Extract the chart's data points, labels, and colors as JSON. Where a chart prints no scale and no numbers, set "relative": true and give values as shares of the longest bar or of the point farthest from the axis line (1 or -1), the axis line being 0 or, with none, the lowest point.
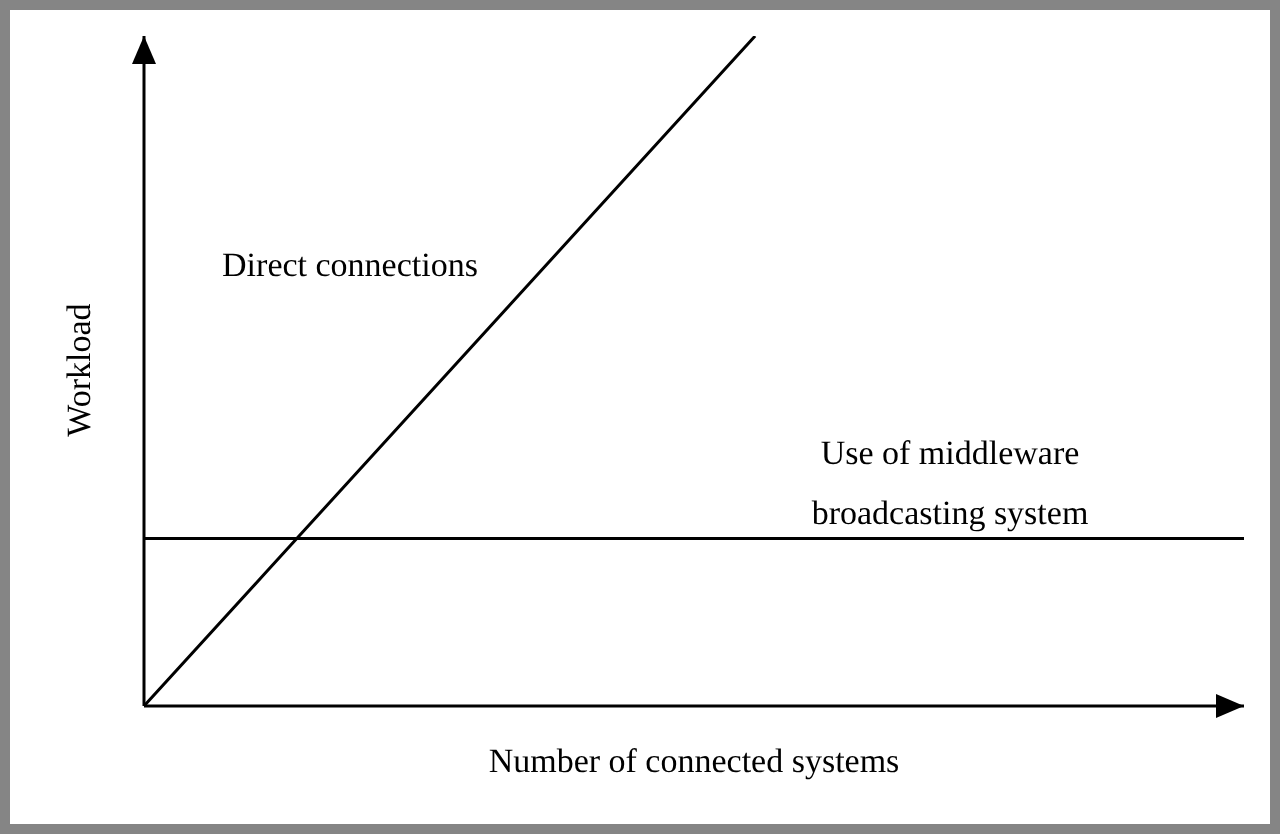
{
  "chart_data": {
    "type": "line",
    "relative": true,
    "xlabel": "Number of connected systems",
    "ylabel": "Workload",
    "categories": [
      null,
      null,
      null,
      null,
      null,
      null,
      null,
      null,
      null,
      null
    ],
    "legend": false,
    "grid": false,
    "marker": "none",
    "line_style": "solid",
    "series": [
      {
        "name": "Direct connections",
        "color": "#000000",
        "values": [
          0,
          0.2,
          0.4,
          0.6,
          0.8,
          1,
          null,
          null,
          null,
          null
        ]
      },
      {
        "name": "Use of middleware broadcasting system",
        "color": "#000000",
        "values": [
          0.25,
          0.25,
          0.25,
          0.25,
          0.25,
          0.25,
          0.25,
          0.25,
          0.25,
          0.25
        ]
      }
    ]
  }
}
